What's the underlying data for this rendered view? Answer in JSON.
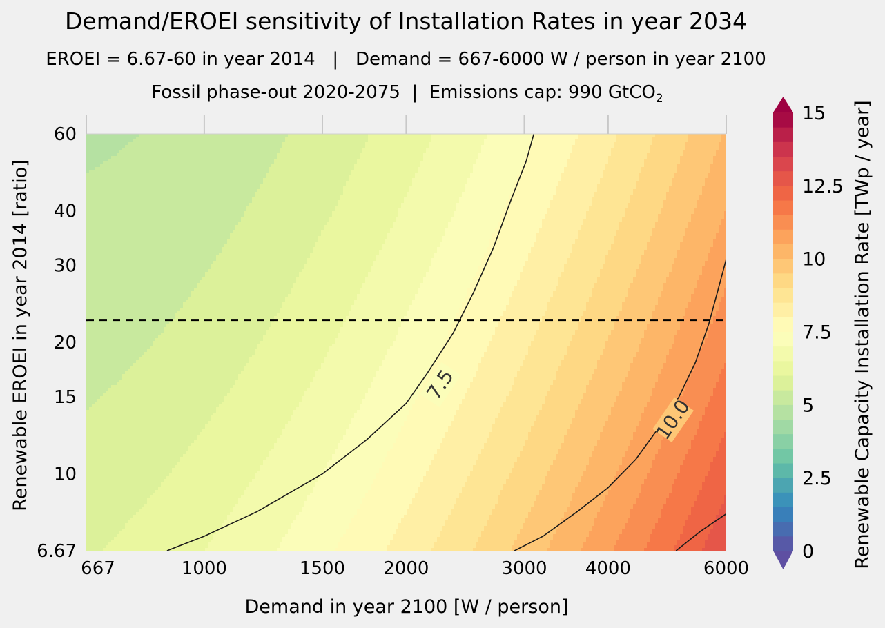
{
  "chart_data": {
    "type": "contour",
    "title": "Demand/EROEI sensitivity of Installation Rates in year 2034",
    "subtitle1": "EROEI = 6.67-60 in year 2014   |   Demand = 667-6000 W / person in year 2100",
    "subtitle2_main": "Fossil phase-out 2020-2075  |  Emissions cap: 990 GtCO",
    "subtitle2_sub": "2",
    "xlabel": "Demand in year 2100 [W / person]",
    "ylabel": "Renewable EROEI in year 2014 [ratio]",
    "colorbar_label": "Renewable Capacity Installation Rate [TWp / year]",
    "x_scale": "log",
    "y_scale": "log",
    "xlim": [
      667,
      6000
    ],
    "ylim": [
      6.67,
      60
    ],
    "x_ticks": [
      667,
      1000,
      1500,
      2000,
      3000,
      4000,
      6000
    ],
    "x_tick_labels": [
      "667",
      "1000",
      "1500",
      "2000",
      "3000",
      "4000",
      "6000"
    ],
    "y_ticks": [
      6.67,
      10,
      15,
      20,
      30,
      40,
      60
    ],
    "y_tick_labels": [
      "6.67",
      "10",
      "15",
      "20",
      "30",
      "40",
      "60"
    ],
    "reference_line": {
      "style": "dashed",
      "y": 22.5
    },
    "colorbar": {
      "min": 0,
      "max": 15,
      "step": 0.5,
      "extend": "both",
      "ticks": [
        0,
        2.5,
        5,
        7.5,
        10,
        12.5,
        15
      ],
      "tick_labels": [
        "0",
        "2.5",
        "5",
        "7.5",
        "10",
        "12.5",
        "15"
      ],
      "colormap": "Spectral_r"
    },
    "contour_lines": [
      {
        "level": 7.5,
        "label": "7.5",
        "points": [
          [
            880,
            6.67
          ],
          [
            1000,
            7.2
          ],
          [
            1200,
            8.2
          ],
          [
            1500,
            10
          ],
          [
            1750,
            12
          ],
          [
            2000,
            14.5
          ],
          [
            2150,
            17
          ],
          [
            2350,
            21
          ],
          [
            2520,
            26
          ],
          [
            2700,
            33
          ],
          [
            2860,
            42
          ],
          [
            3020,
            52
          ],
          [
            3100,
            60
          ]
        ]
      },
      {
        "level": 10.0,
        "label": "10.0",
        "points": [
          [
            2900,
            6.67
          ],
          [
            3200,
            7.2
          ],
          [
            3600,
            8.2
          ],
          [
            4000,
            9.3
          ],
          [
            4400,
            10.8
          ],
          [
            4750,
            12.7
          ],
          [
            5100,
            15
          ],
          [
            5400,
            18
          ],
          [
            5650,
            22
          ],
          [
            5820,
            26
          ],
          [
            6000,
            31
          ]
        ]
      },
      {
        "level": 12.5,
        "label": "",
        "points": [
          [
            5050,
            6.67
          ],
          [
            5500,
            7.4
          ],
          [
            6000,
            8.1
          ]
        ]
      }
    ],
    "grid": false,
    "legend": "none"
  }
}
